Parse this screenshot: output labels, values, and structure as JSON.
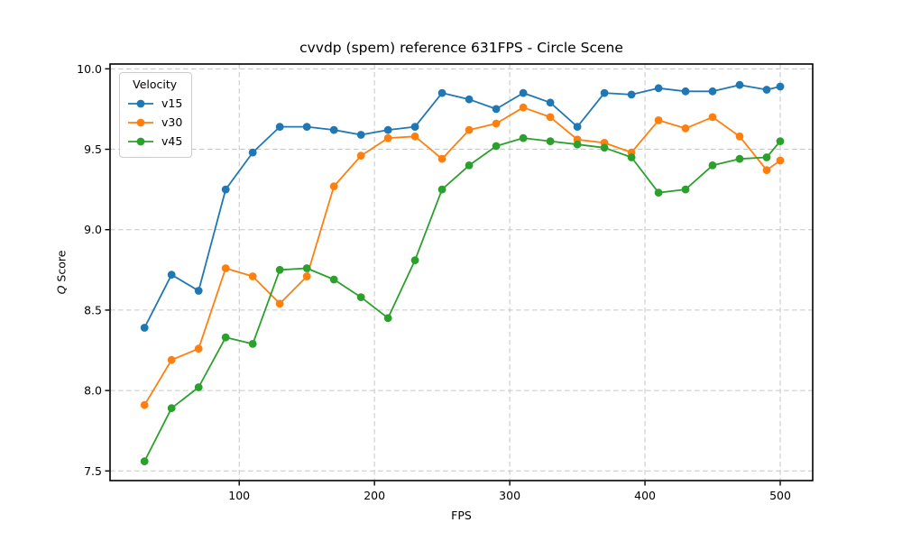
{
  "chart_data": {
    "type": "line",
    "title": "cvvdp (spem) reference 631FPS - Circle Scene",
    "xlabel": "FPS",
    "ylabel": "Q Score",
    "ylabel_parts": {
      "0": "Q",
      "1": " Score"
    },
    "legend": {
      "title": "Velocity",
      "position": "upper left"
    },
    "x": [
      30,
      50,
      70,
      90,
      110,
      130,
      150,
      170,
      190,
      210,
      230,
      250,
      270,
      290,
      310,
      330,
      350,
      370,
      390,
      410,
      430,
      450,
      470,
      490,
      500
    ],
    "series": [
      {
        "name": "v15",
        "color": "#1f77b4",
        "values": [
          8.39,
          8.72,
          8.62,
          9.25,
          9.48,
          9.64,
          9.64,
          9.62,
          9.59,
          9.62,
          9.64,
          9.85,
          9.81,
          9.75,
          9.85,
          9.79,
          9.64,
          9.85,
          9.84,
          9.88,
          9.86,
          9.86,
          9.9,
          9.87,
          9.89
        ]
      },
      {
        "name": "v30",
        "color": "#ff7f0e",
        "values": [
          7.91,
          8.19,
          8.26,
          8.76,
          8.71,
          8.54,
          8.71,
          9.27,
          9.46,
          9.57,
          9.58,
          9.44,
          9.62,
          9.66,
          9.76,
          9.7,
          9.56,
          9.54,
          9.48,
          9.68,
          9.63,
          9.7,
          9.58,
          9.37,
          9.43
        ]
      },
      {
        "name": "v45",
        "color": "#2ca02c",
        "values": [
          7.56,
          7.89,
          8.02,
          8.33,
          8.29,
          8.75,
          8.76,
          8.69,
          8.58,
          8.45,
          8.81,
          9.25,
          9.4,
          9.52,
          9.57,
          9.55,
          9.53,
          9.51,
          9.45,
          9.23,
          9.25,
          9.4,
          9.44,
          9.45,
          9.55
        ]
      }
    ],
    "xlim": [
      4.5,
      524
    ],
    "ylim": [
      7.44,
      10.03
    ],
    "xticks": [
      100,
      200,
      300,
      400,
      500
    ],
    "xtick_labels": [
      "100",
      "200",
      "300",
      "400",
      "500"
    ],
    "yticks": [
      7.5,
      8.0,
      8.5,
      9.0,
      9.5,
      10.0
    ],
    "ytick_labels": [
      "7.5",
      "8.0",
      "8.5",
      "9.0",
      "9.5",
      "10.0"
    ],
    "grid": true,
    "grid_color": "#c6c6c6",
    "axes_color": "#000000",
    "background": "#ffffff",
    "marker": "circle"
  }
}
